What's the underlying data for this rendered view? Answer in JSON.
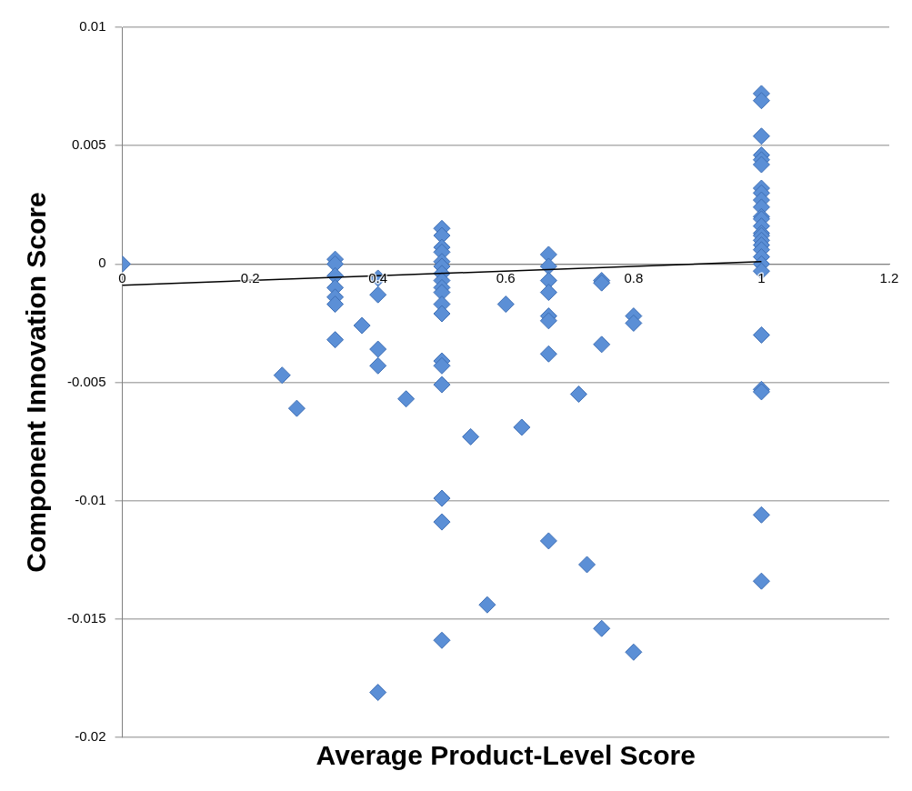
{
  "chart_data": {
    "type": "scatter",
    "xlabel": "Average Product-Level Score",
    "ylabel": "Component Innovation Score",
    "xlim": [
      0,
      1.2
    ],
    "xticks": [
      0,
      0.2,
      0.4,
      0.6,
      0.8,
      1,
      1.2
    ],
    "ylim": [
      -0.02,
      0.01
    ],
    "yticks": [
      -0.02,
      -0.015,
      -0.01,
      -0.005,
      0,
      0.005,
      0.01
    ],
    "grid": "y",
    "legend": false,
    "marker": "diamond",
    "series": [
      {
        "color": "#5b8fd6",
        "x": [
          0,
          0.333,
          0.333,
          0.333,
          0.333,
          0.333,
          0.333,
          0.333,
          0.25,
          0.273,
          0.375,
          0.4,
          0.4,
          0.4,
          0.4,
          0.4,
          0.444,
          0.5,
          0.5,
          0.5,
          0.5,
          0.5,
          0.5,
          0.5,
          0.5,
          0.5,
          0.5,
          0.5,
          0.5,
          0.5,
          0.5,
          0.5,
          0.5,
          0.5,
          0.5,
          0.545,
          0.571,
          0.6,
          0.625,
          0.667,
          0.667,
          0.667,
          0.667,
          0.667,
          0.667,
          0.667,
          0.667,
          0.714,
          0.727,
          0.75,
          0.75,
          0.75,
          0.75,
          0.8,
          0.8,
          0.8,
          1,
          1,
          1,
          1,
          1,
          1,
          1,
          1,
          1,
          1,
          1,
          1,
          1,
          1,
          1,
          1,
          1,
          1,
          1,
          1,
          1,
          1,
          1,
          1,
          1,
          1
        ],
        "values": [
          0,
          0.0002,
          0,
          -0.0005,
          -0.001,
          -0.0014,
          -0.0017,
          -0.0032,
          -0.0047,
          -0.0061,
          -0.0026,
          -0.0006,
          -0.0013,
          -0.0036,
          -0.0043,
          -0.0181,
          -0.0057,
          0.0015,
          0.0012,
          0.0007,
          0.0005,
          0.0001,
          -0.0001,
          -0.0004,
          -0.0007,
          -0.001,
          -0.0012,
          -0.0017,
          -0.0021,
          -0.0041,
          -0.0043,
          -0.0051,
          -0.0099,
          -0.0109,
          -0.0159,
          -0.0073,
          -0.0144,
          -0.0017,
          -0.0069,
          0.0004,
          -0.0001,
          -0.0007,
          -0.0012,
          -0.0022,
          -0.0024,
          -0.0038,
          -0.0117,
          -0.0055,
          -0.0127,
          -0.0007,
          -0.0008,
          -0.0034,
          -0.0154,
          -0.0022,
          -0.0025,
          -0.0164,
          0.0072,
          0.0069,
          0.0054,
          0.0046,
          0.0044,
          0.0042,
          0.0032,
          0.003,
          0.0027,
          0.0024,
          0.002,
          0.0019,
          0.0016,
          0.0013,
          0.0012,
          0.001,
          0.0008,
          0.0006,
          0.0003,
          0,
          -0.0003,
          -0.003,
          -0.0053,
          -0.0054,
          -0.0106,
          -0.0134
        ]
      },
      {
        "type": "line",
        "marker": "none",
        "color": "#000000",
        "x": [
          0,
          1
        ],
        "values": [
          -0.0009,
          0.0001
        ]
      }
    ]
  }
}
